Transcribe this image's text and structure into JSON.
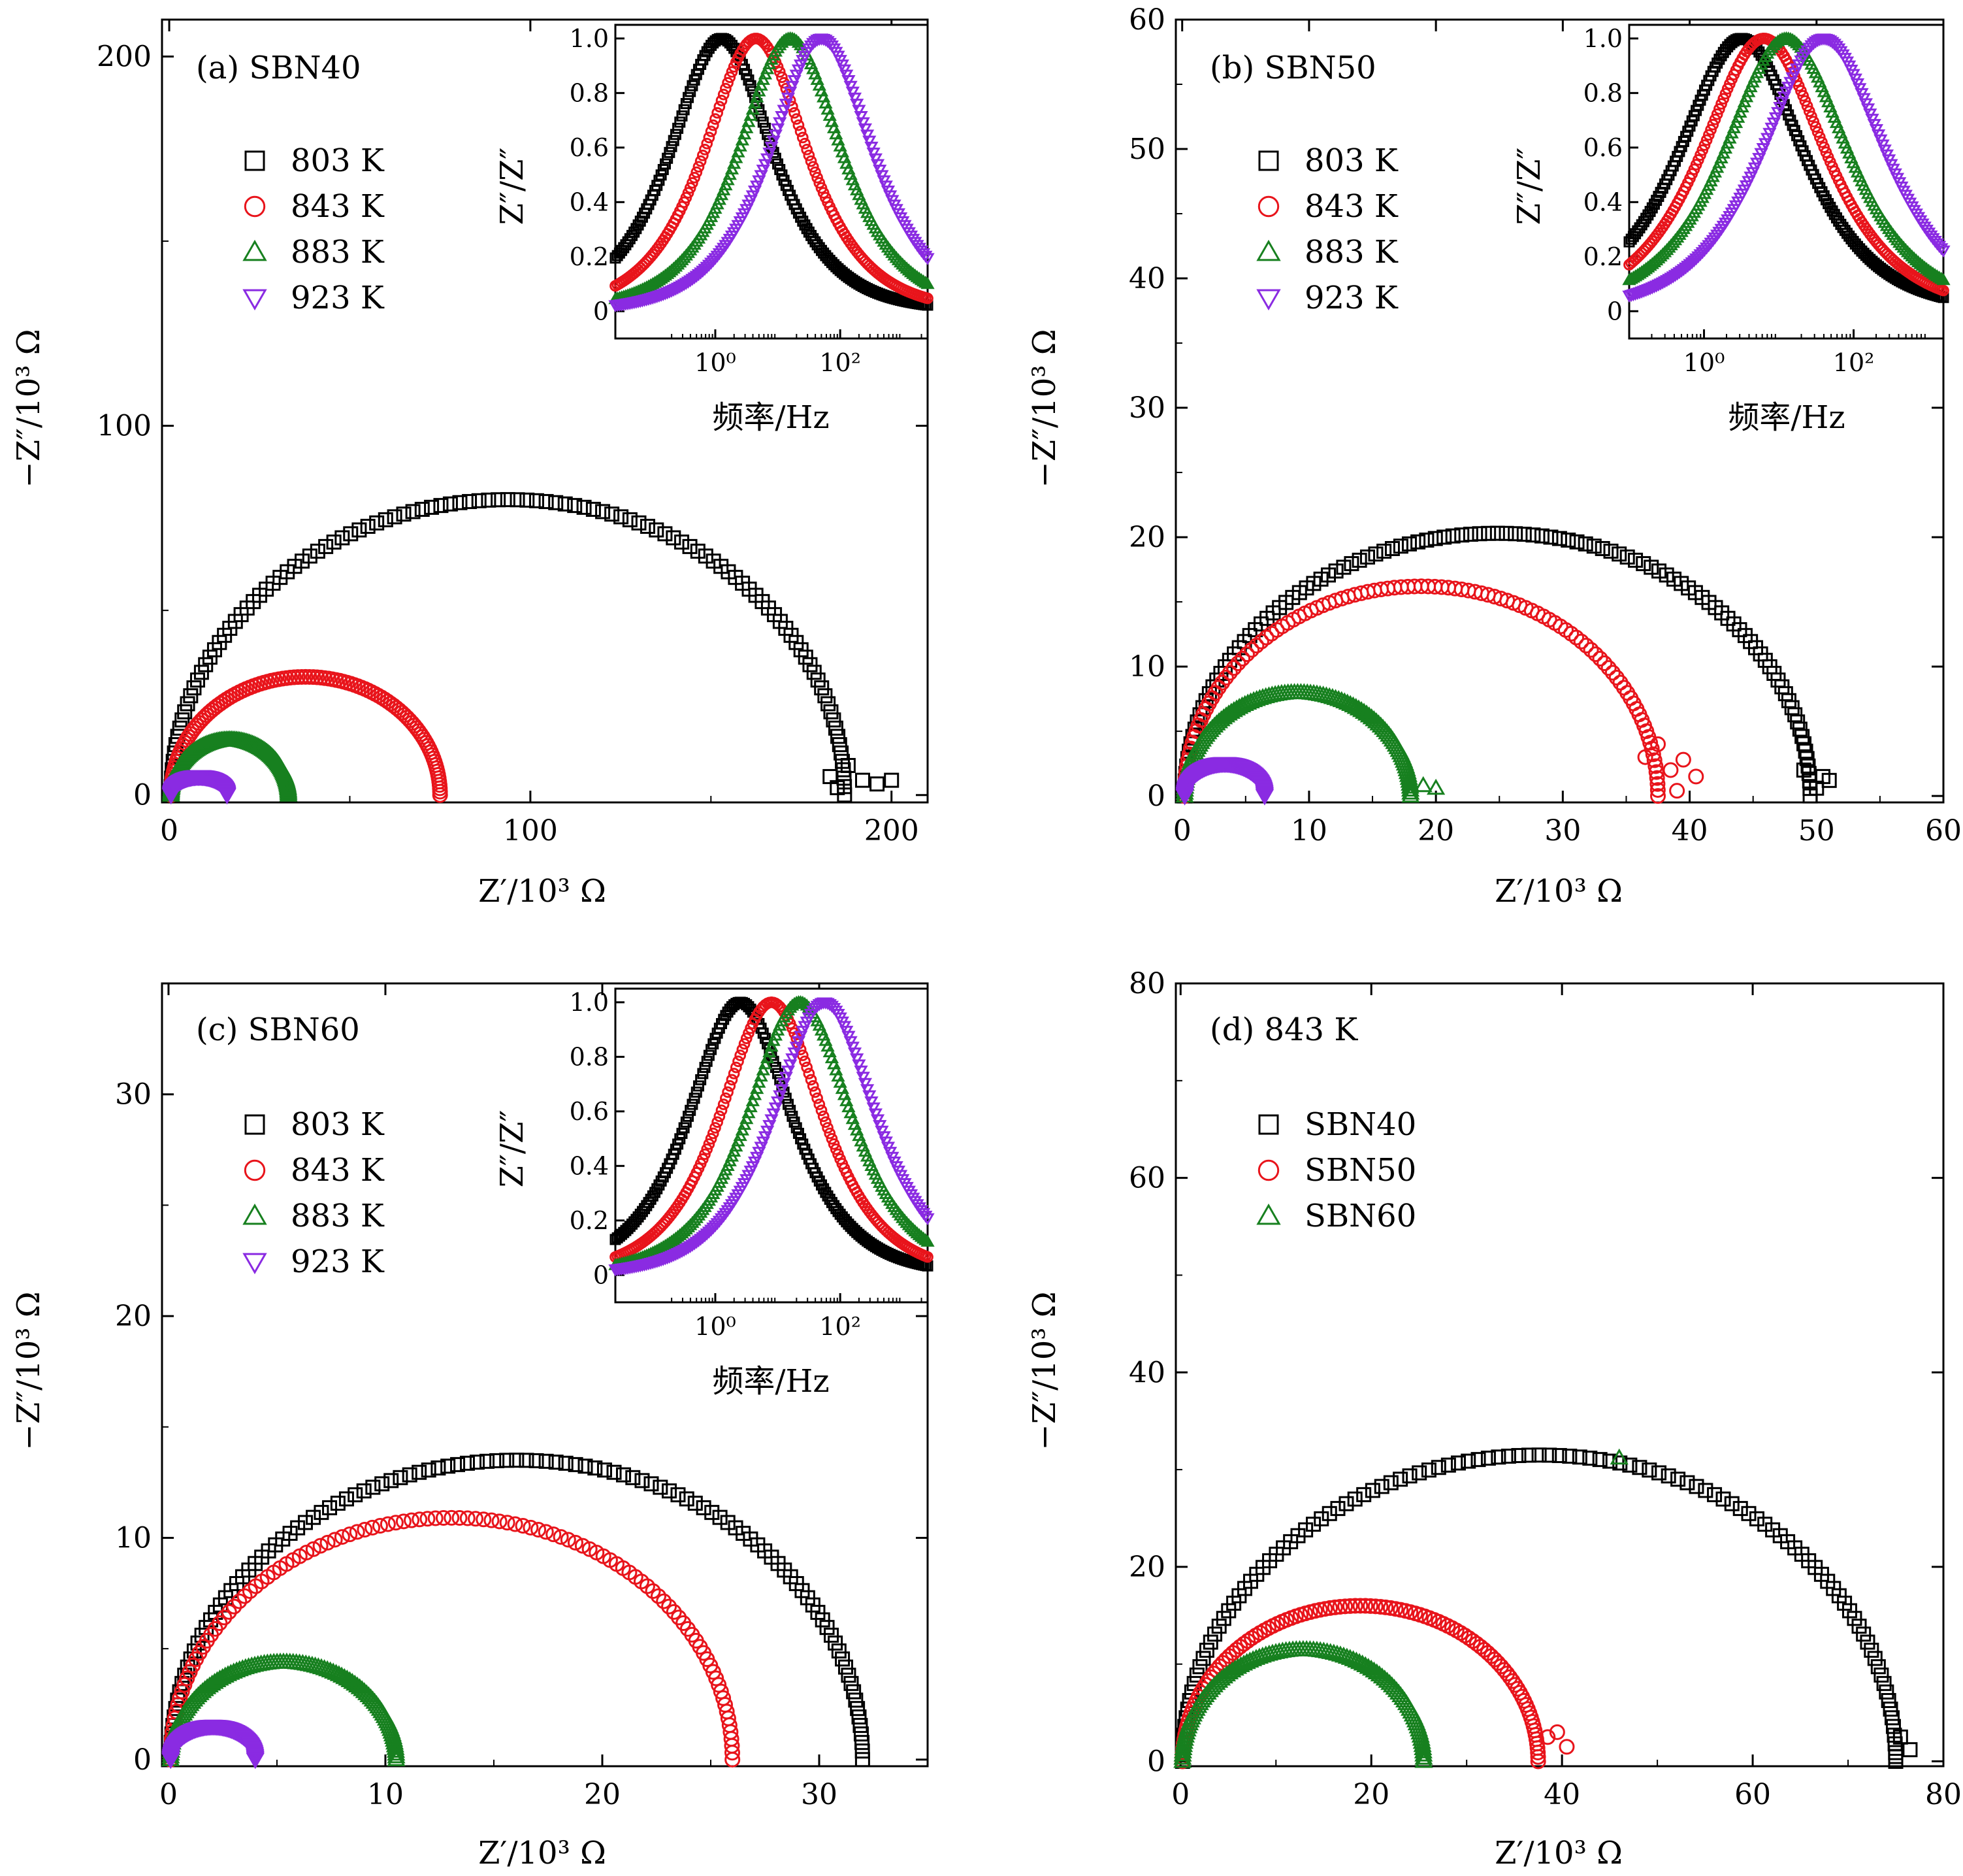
{
  "colors": {
    "803 K": "#000000",
    "843 K": "#e8141b",
    "883 K": "#17801f",
    "923 K": "#8a2be2",
    "SBN40": "#000000",
    "SBN50": "#e8141b",
    "SBN60": "#17801f"
  },
  "chart_data": [
    {
      "id": "a",
      "type": "scatter",
      "panel_label": "(a) SBN40",
      "xlabel": "Z′/10³ Ω",
      "ylabel": "−Z″/10³ Ω",
      "xlim": [
        -2,
        210
      ],
      "ylim": [
        -2,
        210
      ],
      "xticks": [
        "0",
        "100",
        "200"
      ],
      "xtick_values": [
        0,
        100,
        200
      ],
      "yticks": [
        "0",
        "100",
        "200"
      ],
      "ytick_values": [
        0,
        100,
        200
      ],
      "legend": [
        {
          "label": "803 K",
          "marker": "square"
        },
        {
          "label": "843 K",
          "marker": "circle"
        },
        {
          "label": "883 K",
          "marker": "triangle-up"
        },
        {
          "label": "923 K",
          "marker": "triangle-down"
        }
      ],
      "series": [
        {
          "name": "803 K",
          "marker": "square",
          "arc": {
            "r0": 0.5,
            "r1": 187,
            "peak": 80
          },
          "tail": [
            [
              183,
              5
            ],
            [
              188,
              8
            ],
            [
              185,
              2
            ],
            [
              192,
              4
            ],
            [
              196,
              3
            ],
            [
              200,
              4
            ]
          ]
        },
        {
          "name": "843 K",
          "marker": "circle",
          "arc": {
            "r0": 0.5,
            "r1": 75,
            "peak": 32
          }
        },
        {
          "name": "883 K",
          "marker": "triangle-up",
          "arc": {
            "r0": 0.5,
            "r1": 33,
            "peak": 15
          }
        },
        {
          "name": "923 K",
          "marker": "triangle-down",
          "arc": {
            "r0": 0.5,
            "r1": 16,
            "peak": 5
          }
        }
      ],
      "inset": {
        "xlabel": "频率/Hz",
        "ylabel": "Z″/Z″",
        "xscale": "log",
        "xlim_log10": [
          -1.6,
          3.4
        ],
        "xticks": [
          "10⁰",
          "10²"
        ],
        "xtick_values_log10": [
          0,
          2
        ],
        "ylim": [
          -0.1,
          1.05
        ],
        "yticks": [
          "0",
          "0.2",
          "0.4",
          "0.6",
          "0.8",
          "1.0"
        ],
        "ytick_values": [
          0,
          0.2,
          0.4,
          0.6,
          0.8,
          1.0
        ],
        "series": [
          {
            "name": "803 K",
            "marker": "square",
            "peak_log10": 0.1,
            "width": 1.1
          },
          {
            "name": "843 K",
            "marker": "circle",
            "peak_log10": 0.65,
            "width": 1.1
          },
          {
            "name": "883 K",
            "marker": "triangle-up",
            "peak_log10": 1.2,
            "width": 1.1
          },
          {
            "name": "923 K",
            "marker": "triangle-down",
            "peak_log10": 1.7,
            "width": 1.1
          }
        ]
      }
    },
    {
      "id": "b",
      "type": "scatter",
      "panel_label": "(b) SBN50",
      "xlabel": "Z′/10³ Ω",
      "ylabel": "−Z″/10³ Ω",
      "xlim": [
        -0.5,
        60
      ],
      "ylim": [
        -0.5,
        60
      ],
      "xticks": [
        "0",
        "10",
        "20",
        "30",
        "40",
        "50",
        "60"
      ],
      "xtick_values": [
        0,
        10,
        20,
        30,
        40,
        50,
        60
      ],
      "yticks": [
        "0",
        "10",
        "20",
        "30",
        "40",
        "50",
        "60"
      ],
      "ytick_values": [
        0,
        10,
        20,
        30,
        40,
        50,
        60
      ],
      "legend": [
        {
          "label": "803 K",
          "marker": "square"
        },
        {
          "label": "843 K",
          "marker": "circle"
        },
        {
          "label": "883 K",
          "marker": "triangle-up"
        },
        {
          "label": "923 K",
          "marker": "triangle-down"
        }
      ],
      "series": [
        {
          "name": "803 K",
          "marker": "square",
          "arc": {
            "r0": 0.2,
            "r1": 49.5,
            "peak": 20.3
          },
          "tail": [
            [
              49,
              2
            ],
            [
              50.5,
              1.5
            ],
            [
              50,
              0.6
            ],
            [
              51,
              1.2
            ]
          ]
        },
        {
          "name": "843 K",
          "marker": "circle",
          "arc": {
            "r0": 0.2,
            "r1": 37.5,
            "peak": 16.2
          },
          "tail": [
            [
              36.5,
              3
            ],
            [
              37.5,
              4
            ],
            [
              38.5,
              2
            ],
            [
              39.5,
              2.8
            ],
            [
              40.5,
              1.5
            ],
            [
              39,
              0.4
            ]
          ]
        },
        {
          "name": "883 K",
          "marker": "triangle-up",
          "arc": {
            "r0": 0.2,
            "r1": 18,
            "peak": 8
          },
          "tail": [
            [
              19,
              0.8
            ],
            [
              20,
              0.6
            ]
          ]
        },
        {
          "name": "923 K",
          "marker": "triangle-down",
          "arc": {
            "r0": 0.2,
            "r1": 6.5,
            "peak": 2.5
          }
        }
      ],
      "inset": {
        "xlabel": "频率/Hz",
        "ylabel": "Z″/Z″",
        "xscale": "log",
        "xlim_log10": [
          -1.0,
          3.2
        ],
        "xticks": [
          "10⁰",
          "10²"
        ],
        "xtick_values_log10": [
          0,
          2
        ],
        "ylim": [
          -0.1,
          1.05
        ],
        "yticks": [
          "0",
          "0.2",
          "0.4",
          "0.6",
          "0.8",
          "1.0"
        ],
        "ytick_values": [
          0,
          0.2,
          0.4,
          0.6,
          0.8,
          1.0
        ],
        "series": [
          {
            "name": "803 K",
            "marker": "square",
            "peak_log10": 0.5,
            "width": 1.1
          },
          {
            "name": "843 K",
            "marker": "circle",
            "peak_log10": 0.8,
            "width": 1.1
          },
          {
            "name": "883 K",
            "marker": "triangle-up",
            "peak_log10": 1.1,
            "width": 1.1
          },
          {
            "name": "923 K",
            "marker": "triangle-down",
            "peak_log10": 1.6,
            "width": 1.1
          }
        ]
      }
    },
    {
      "id": "c",
      "type": "scatter",
      "panel_label": "(c) SBN60",
      "xlabel": "Z′/10³ Ω",
      "ylabel": "−Z″/10³ Ω",
      "xlim": [
        -0.3,
        35
      ],
      "ylim": [
        -0.3,
        35
      ],
      "xticks": [
        "0",
        "10",
        "20",
        "30"
      ],
      "xtick_values": [
        0,
        10,
        20,
        30
      ],
      "yticks": [
        "0",
        "10",
        "20",
        "30"
      ],
      "ytick_values": [
        0,
        10,
        20,
        30
      ],
      "legend": [
        {
          "label": "803 K",
          "marker": "square"
        },
        {
          "label": "843 K",
          "marker": "circle"
        },
        {
          "label": "883 K",
          "marker": "triangle-up"
        },
        {
          "label": "923 K",
          "marker": "triangle-down"
        }
      ],
      "series": [
        {
          "name": "803 K",
          "marker": "square",
          "arc": {
            "r0": 0.1,
            "r1": 32,
            "peak": 13.5
          }
        },
        {
          "name": "843 K",
          "marker": "circle",
          "arc": {
            "r0": 0.1,
            "r1": 26,
            "peak": 10.9
          }
        },
        {
          "name": "883 K",
          "marker": "triangle-up",
          "arc": {
            "r0": 0.1,
            "r1": 10.5,
            "peak": 4.4
          }
        },
        {
          "name": "923 K",
          "marker": "triangle-down",
          "arc": {
            "r0": 0.1,
            "r1": 4,
            "peak": 1.5
          }
        }
      ],
      "inset": {
        "xlabel": "频率/Hz",
        "ylabel": "Z″/Z″",
        "xscale": "log",
        "xlim_log10": [
          -1.6,
          3.4
        ],
        "xticks": [
          "10⁰",
          "10²"
        ],
        "xtick_values_log10": [
          0,
          2
        ],
        "ylim": [
          -0.1,
          1.05
        ],
        "yticks": [
          "0",
          "0.2",
          "0.4",
          "0.6",
          "0.8",
          "1.0"
        ],
        "ytick_values": [
          0,
          0.2,
          0.4,
          0.6,
          0.8,
          1.0
        ],
        "series": [
          {
            "name": "803 K",
            "marker": "square",
            "peak_log10": 0.4,
            "width": 1.1
          },
          {
            "name": "843 K",
            "marker": "circle",
            "peak_log10": 0.9,
            "width": 1.1
          },
          {
            "name": "883 K",
            "marker": "triangle-up",
            "peak_log10": 1.35,
            "width": 1.1
          },
          {
            "name": "923 K",
            "marker": "triangle-down",
            "peak_log10": 1.75,
            "width": 1.1
          }
        ]
      }
    },
    {
      "id": "d",
      "type": "scatter",
      "panel_label": "(d) 843 K",
      "xlabel": "Z′/10³ Ω",
      "ylabel": "−Z″/10³ Ω",
      "xlim": [
        -0.5,
        80
      ],
      "ylim": [
        -0.5,
        80
      ],
      "xticks": [
        "0",
        "20",
        "40",
        "60",
        "80"
      ],
      "xtick_values": [
        0,
        20,
        40,
        60,
        80
      ],
      "yticks": [
        "0",
        "20",
        "40",
        "60",
        "80"
      ],
      "ytick_values": [
        0,
        20,
        40,
        60,
        80
      ],
      "legend": [
        {
          "label": "SBN40",
          "marker": "square"
        },
        {
          "label": "SBN50",
          "marker": "circle"
        },
        {
          "label": "SBN60",
          "marker": "triangle-up"
        }
      ],
      "series": [
        {
          "name": "SBN40",
          "marker": "square",
          "arc": {
            "r0": 0.2,
            "r1": 75,
            "peak": 31.5
          },
          "tail": [
            [
              75.5,
              2.5
            ],
            [
              76.5,
              1.2
            ],
            [
              75,
              0.5
            ]
          ]
        },
        {
          "name": "SBN50",
          "marker": "circle",
          "arc": {
            "r0": 0.2,
            "r1": 37.5,
            "peak": 16
          },
          "tail": [
            [
              38.5,
              2.5
            ],
            [
              39.5,
              3
            ],
            [
              40.5,
              1.5
            ]
          ]
        },
        {
          "name": "SBN60",
          "marker": "triangle-up",
          "arc": {
            "r0": 0.2,
            "r1": 25.5,
            "peak": 11.5
          }
        },
        {
          "name": "SBN60",
          "marker": "triangle-up",
          "points": [
            [
              46,
              31.2
            ]
          ]
        }
      ]
    }
  ]
}
